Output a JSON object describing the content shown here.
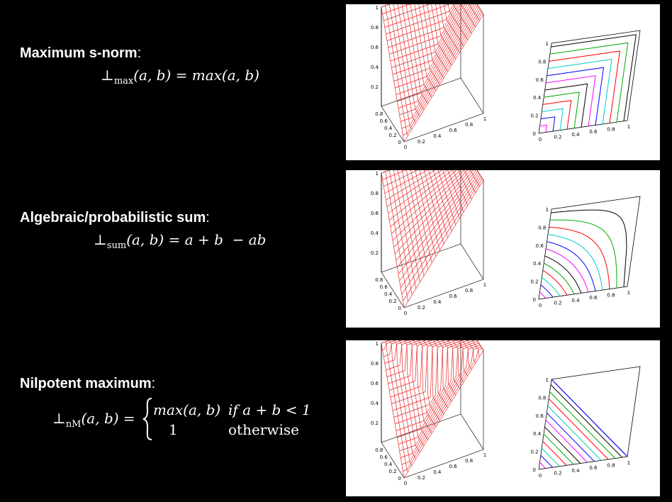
{
  "sections": [
    {
      "title": "Maximum s-norm",
      "colon": ":",
      "formula": {
        "op": "⊥",
        "sub": "max",
        "args": "(a, b)",
        "eq": "=",
        "rhs": "max(a, b)"
      },
      "func": "max"
    },
    {
      "title": "Algebraic/probabilistic sum",
      "colon": ":",
      "formula": {
        "op": "⊥",
        "sub": "sum",
        "args": "(a, b)",
        "eq": "=",
        "rhs": "a + b  − ab"
      },
      "func": "sum"
    },
    {
      "title": "Nilpotent maximum",
      "colon": ":",
      "formula": {
        "op": "⊥",
        "sub": "nM",
        "args": "(a, b)",
        "eq": "=",
        "case1_expr": "max(a, b)",
        "case1_cond": "if a + b < 1",
        "case2_expr": "1",
        "case2_cond": "otherwise"
      },
      "func": "nM"
    }
  ],
  "axis_ticks": {
    "surface_z": [
      "1",
      "0.8",
      "0.6",
      "0.4",
      "0.2"
    ],
    "surface_y": [
      "0.8",
      "0.6",
      "0.4",
      "0.2",
      "0"
    ],
    "surface_x": [
      "0",
      "0.2",
      "0.4",
      "0.6",
      "0.8",
      "1"
    ],
    "contour_y": [
      "1",
      "0.8",
      "0.6",
      "0.4",
      "0.2",
      "0"
    ],
    "contour_x": [
      "0",
      "0.2",
      "0.4",
      "0.6",
      "0.8",
      "1"
    ]
  },
  "colors": {
    "background": "#000000",
    "text": "#ffffff",
    "panel": "#ffffff",
    "mesh": "#e8272a",
    "contours": [
      "#ff00ff",
      "#0000ff",
      "#00cccc",
      "#ff0000",
      "#00aa00",
      "#000000",
      "#ff00ff",
      "#0000ff",
      "#00cccc",
      "#ff0000",
      "#00aa00",
      "#000000"
    ]
  }
}
